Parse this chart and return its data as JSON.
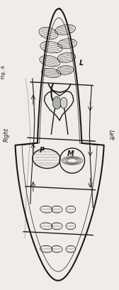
{
  "bg_color": "#f0ede8",
  "line_color": "#1a1a1a",
  "label_L": "L",
  "label_P": "P",
  "label_M": "M",
  "label_right": "Right",
  "label_left": "Left",
  "fig_label": "Fig. 4",
  "title_fontsize": 6,
  "annotation_fontsize": 5.5,
  "label_fontsize": 7
}
